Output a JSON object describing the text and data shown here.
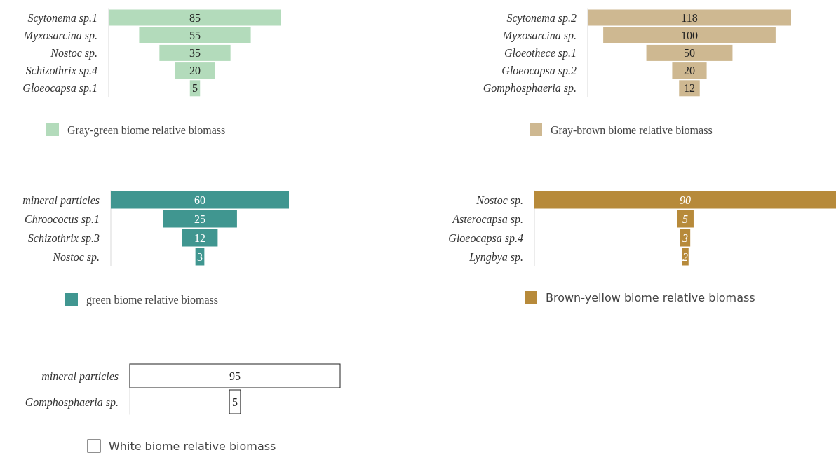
{
  "chart_data": [
    {
      "type": "other",
      "categories": [
        "Scytonema sp.1",
        "Myxosarcina sp.",
        "Nostoc sp.",
        "Schizothrix sp.4",
        "Gloeocapsa sp.1"
      ],
      "series": [
        {
          "name": "Gray-green biome relative biomass",
          "color": "#b3dbbb",
          "values": [
            85,
            55,
            35,
            20,
            5
          ]
        }
      ],
      "data_labels": true,
      "legend": "bottom"
    },
    {
      "type": "other",
      "categories": [
        "Scytonema sp.2",
        "Myxosarcina sp.",
        "Gloeothece sp.1",
        "Gloeocapsa sp.2",
        "Gomphosphaeria sp."
      ],
      "series": [
        {
          "name": "Gray-brown biome relative biomass",
          "color": "#ceb891",
          "values": [
            118,
            100,
            50,
            20,
            12
          ]
        }
      ],
      "data_labels": true,
      "legend": "bottom"
    },
    {
      "type": "other",
      "categories": [
        "mineral particles",
        "Chroococus sp.1",
        "Schizothrix sp.3",
        "Nostoc sp."
      ],
      "series": [
        {
          "name": "green biome relative biomass",
          "color": "#409690",
          "values": [
            60,
            25,
            12,
            3
          ]
        }
      ],
      "data_labels": true,
      "legend": "bottom"
    },
    {
      "type": "other",
      "categories": [
        "Nostoc sp.",
        "Asterocapsa sp.",
        "Gloeocapsa sp.4",
        "Lyngbya sp."
      ],
      "series": [
        {
          "name": "Brown-yellow biome relative biomass",
          "color": "#b78a3a",
          "values": [
            90,
            5,
            3,
            2
          ]
        }
      ],
      "data_labels": true,
      "legend": "bottom"
    },
    {
      "type": "other",
      "categories": [
        "mineral particles",
        "Gomphosphaeria sp."
      ],
      "series": [
        {
          "name": "White biome relative biomass",
          "color": "#ffffff",
          "values": [
            95,
            5
          ]
        }
      ],
      "data_labels": true,
      "legend": "bottom"
    }
  ]
}
